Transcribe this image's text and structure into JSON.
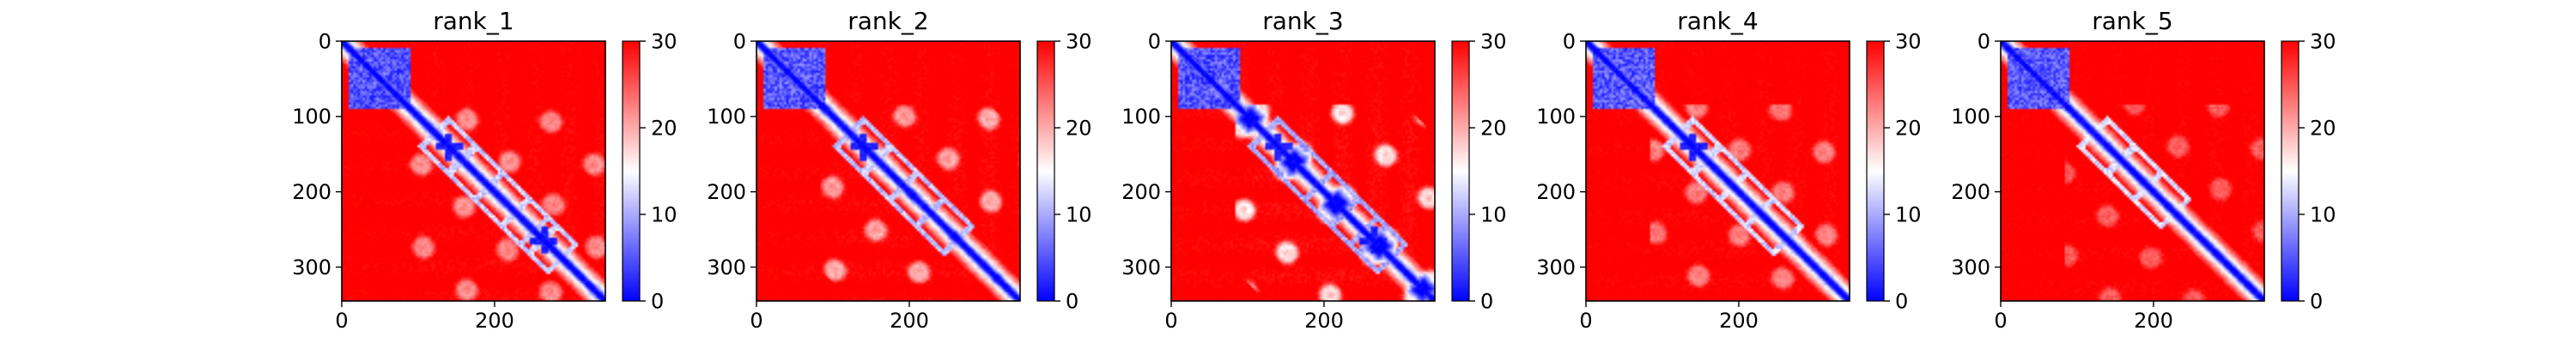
{
  "chart_data": [
    {
      "type": "heatmap",
      "title": "rank_1",
      "xlabel": "",
      "ylabel": "",
      "matrix_size": 345,
      "xlim": [
        0,
        345
      ],
      "ylim": [
        345,
        0
      ],
      "x_ticks": [
        0,
        200
      ],
      "y_ticks": [
        0,
        100,
        200,
        300
      ],
      "colorbar": {
        "ticks": [
          0,
          10,
          20,
          30
        ],
        "range": [
          0,
          30
        ],
        "colormap": "bwr"
      },
      "features": {
        "low_block": [
          0,
          90
        ],
        "diamonds": [
          140,
          175,
          210,
          245,
          270
        ],
        "contact_centers": [
          140,
          265
        ],
        "pattern_strength": 0.65
      }
    },
    {
      "type": "heatmap",
      "title": "rank_2",
      "xlabel": "",
      "ylabel": "",
      "matrix_size": 345,
      "xlim": [
        0,
        345
      ],
      "ylim": [
        345,
        0
      ],
      "x_ticks": [
        0,
        200
      ],
      "y_ticks": [
        0,
        100,
        200,
        300
      ],
      "colorbar": {
        "ticks": [
          0,
          10,
          20,
          30
        ],
        "range": [
          0,
          30
        ],
        "colormap": "bwr"
      },
      "features": {
        "low_block": [
          0,
          90
        ],
        "diamonds": [
          140,
          175,
          210,
          245
        ],
        "contact_centers": [
          140
        ],
        "pattern_strength": 0.75
      }
    },
    {
      "type": "heatmap",
      "title": "rank_3",
      "xlabel": "",
      "ylabel": "",
      "matrix_size": 345,
      "xlim": [
        0,
        345
      ],
      "ylim": [
        345,
        0
      ],
      "x_ticks": [
        0,
        200
      ],
      "y_ticks": [
        0,
        100,
        200,
        300
      ],
      "colorbar": {
        "ticks": [
          0,
          10,
          20,
          30
        ],
        "range": [
          0,
          30
        ],
        "colormap": "bwr"
      },
      "features": {
        "low_block": [
          0,
          90
        ],
        "diamonds": [
          140,
          175,
          210,
          245,
          270
        ],
        "contact_centers": [
          140,
          265
        ],
        "pattern_strength": 1.0
      }
    },
    {
      "type": "heatmap",
      "title": "rank_4",
      "xlabel": "",
      "ylabel": "",
      "matrix_size": 345,
      "xlim": [
        0,
        345
      ],
      "ylim": [
        345,
        0
      ],
      "x_ticks": [
        0,
        200
      ],
      "y_ticks": [
        0,
        100,
        200,
        300
      ],
      "colorbar": {
        "ticks": [
          0,
          10,
          20,
          30
        ],
        "range": [
          0,
          30
        ],
        "colormap": "bwr"
      },
      "features": {
        "low_block": [
          0,
          90
        ],
        "diamonds": [
          140,
          175,
          210,
          245
        ],
        "contact_centers": [
          140
        ],
        "pattern_strength": 0.6
      }
    },
    {
      "type": "heatmap",
      "title": "rank_5",
      "xlabel": "",
      "ylabel": "",
      "matrix_size": 345,
      "xlim": [
        0,
        345
      ],
      "ylim": [
        345,
        0
      ],
      "x_ticks": [
        0,
        200
      ],
      "y_ticks": [
        0,
        100,
        200,
        300
      ],
      "colorbar": {
        "ticks": [
          0,
          10,
          20,
          30
        ],
        "range": [
          0,
          30
        ],
        "colormap": "bwr"
      },
      "features": {
        "low_block": [
          0,
          90
        ],
        "diamonds": [
          140,
          175,
          210
        ],
        "contact_centers": [],
        "pattern_strength": 0.45
      }
    }
  ]
}
